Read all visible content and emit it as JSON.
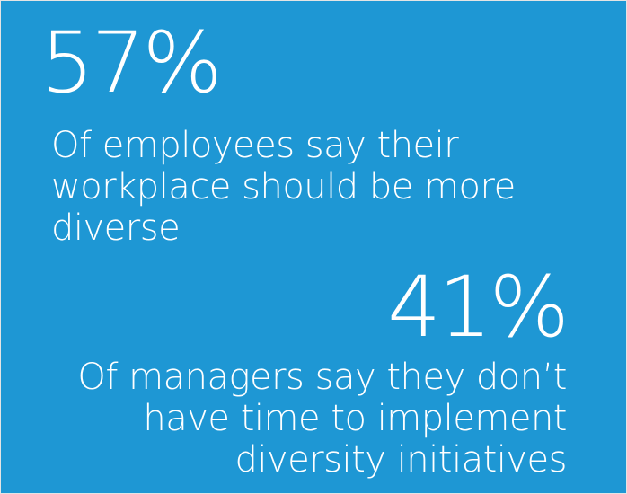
{
  "stats": [
    {
      "percent": "57%",
      "description_lines": [
        "Of employees say their",
        "workplace should be more",
        "diverse"
      ]
    },
    {
      "percent": "41%",
      "description_lines": [
        "Of managers say they don’t",
        "have time to implement",
        "diversity initiatives"
      ]
    }
  ],
  "colors": {
    "background": "#1e97d4",
    "text": "#ffffff"
  }
}
